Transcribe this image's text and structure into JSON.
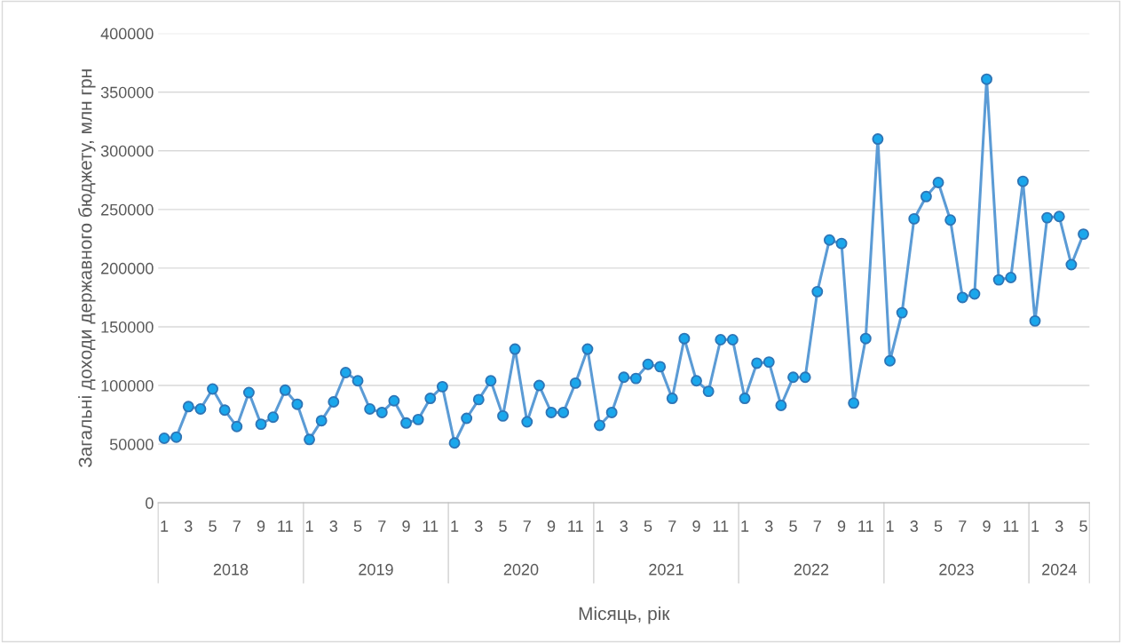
{
  "chart_data": {
    "type": "line",
    "xlabel": "Місяць, рік",
    "ylabel": "Загальні доходи державного бюджету, млн грн",
    "categories": [
      "1",
      null,
      "3",
      null,
      "5",
      null,
      "7",
      null,
      "9",
      null,
      "11",
      null,
      "1",
      null,
      "3",
      null,
      "5",
      null,
      "7",
      null,
      "9",
      null,
      "11",
      null,
      "1",
      null,
      "3",
      null,
      "5",
      null,
      "7",
      null,
      "9",
      null,
      "11",
      null,
      "1",
      null,
      "3",
      null,
      "5",
      null,
      "7",
      null,
      "9",
      null,
      "11",
      null,
      "1",
      null,
      "3",
      null,
      "5",
      null,
      "7",
      null,
      "9",
      null,
      "11",
      null,
      "1",
      null,
      "3",
      null,
      "5",
      null,
      "7",
      null,
      "9",
      null,
      "11",
      null,
      "1",
      null,
      "3",
      null,
      "5"
    ],
    "series": [
      {
        "color": "#5b9bd5",
        "values": [
          55000,
          56000,
          82000,
          80000,
          97000,
          79000,
          65000,
          94000,
          67000,
          73000,
          96000,
          84000,
          54000,
          70000,
          86000,
          111000,
          104000,
          80000,
          77000,
          87000,
          68000,
          71000,
          89000,
          99000,
          51000,
          72000,
          88000,
          104000,
          74000,
          131000,
          69000,
          100000,
          77000,
          77000,
          102000,
          131000,
          66000,
          77000,
          107000,
          106000,
          118000,
          116000,
          89000,
          140000,
          104000,
          95000,
          139000,
          139000,
          89000,
          119000,
          120000,
          83000,
          107000,
          107000,
          180000,
          224000,
          221000,
          85000,
          140000,
          310000,
          121000,
          162000,
          242000,
          261000,
          273000,
          241000,
          175000,
          178000,
          361000,
          190000,
          192000,
          274000,
          155000,
          243000,
          244000,
          203000,
          229000
        ]
      }
    ],
    "annotations": [
      "2018",
      "2019",
      "2020",
      "2021",
      "2022",
      "2023",
      "2024"
    ],
    "ylim": [
      0,
      400000
    ],
    "yticks": [
      0,
      50000,
      100000,
      150000,
      200000,
      250000,
      300000,
      350000,
      400000
    ],
    "grid": "y",
    "marker": "circle",
    "line_style": "solid",
    "legend": false
  }
}
